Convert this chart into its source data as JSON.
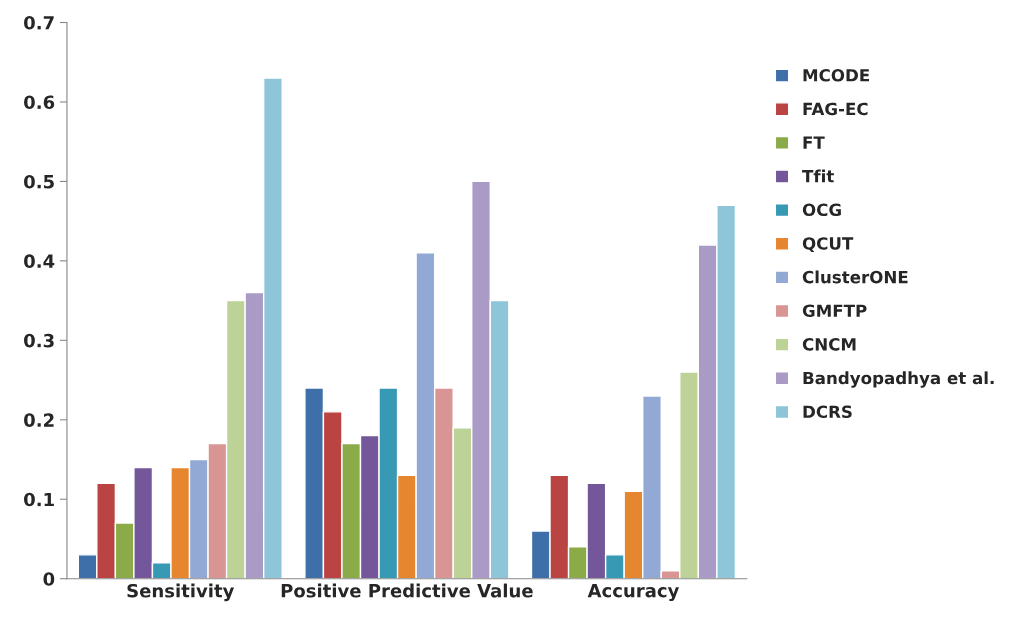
{
  "chart_data": {
    "type": "bar",
    "categories": [
      "Sensitivity",
      "Positive Predictive Value",
      "Accuracy"
    ],
    "series": [
      {
        "name": "MCODE",
        "color": "#3f6fa8",
        "values": [
          0.03,
          0.24,
          0.06
        ]
      },
      {
        "name": "FAG-EC",
        "color": "#b94441",
        "values": [
          0.12,
          0.21,
          0.13
        ]
      },
      {
        "name": "FT",
        "color": "#8bab48",
        "values": [
          0.07,
          0.17,
          0.04
        ]
      },
      {
        "name": "Tfit",
        "color": "#73579a",
        "values": [
          0.14,
          0.18,
          0.12
        ]
      },
      {
        "name": "OCG",
        "color": "#3799b3",
        "values": [
          0.02,
          0.24,
          0.03
        ]
      },
      {
        "name": "QCUT",
        "color": "#e6862f",
        "values": [
          0.14,
          0.13,
          0.11
        ]
      },
      {
        "name": "ClusterONE",
        "color": "#92a9d6",
        "values": [
          0.15,
          0.41,
          0.23
        ]
      },
      {
        "name": "GMFTP",
        "color": "#d99593",
        "values": [
          0.17,
          0.24,
          0.01
        ]
      },
      {
        "name": "CNCM",
        "color": "#bcd296",
        "values": [
          0.35,
          0.19,
          0.26
        ]
      },
      {
        "name": "Bandyopadhya et al.",
        "color": "#a99bc5",
        "values": [
          0.36,
          0.5,
          0.42
        ]
      },
      {
        "name": "DCRS",
        "color": "#8fc5d9",
        "values": [
          0.63,
          0.35,
          0.47
        ]
      }
    ],
    "ylim": [
      0,
      0.7
    ],
    "yticks": [
      0,
      0.1,
      0.2,
      0.3,
      0.4,
      0.5,
      0.6,
      0.7
    ],
    "grid": false,
    "legend": "right"
  }
}
